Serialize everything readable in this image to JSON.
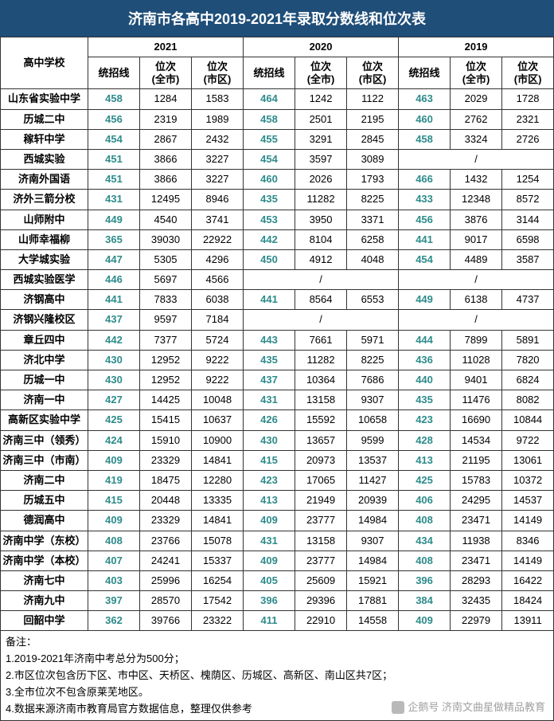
{
  "title": "济南市各高中2019-2021年录取分数线和位次表",
  "header": {
    "school": "高中学校",
    "years": [
      "2021",
      "2020",
      "2019"
    ],
    "sub": [
      "统招线",
      "位次\n(全市)",
      "位次\n(市区)"
    ]
  },
  "style": {
    "title_bg": "#1f4e79",
    "title_color": "#ffffff",
    "title_fontsize": 18,
    "border_color": "#333333",
    "score_color": "#2e8b8b",
    "cell_fontsize": 13,
    "school_col_width": 110,
    "data_col_width": 65
  },
  "rows": [
    {
      "school": "山东省实验中学",
      "d": [
        "458",
        "1284",
        "1583",
        "464",
        "1242",
        "1122",
        "463",
        "2029",
        "1728"
      ]
    },
    {
      "school": "历城二中",
      "d": [
        "456",
        "2319",
        "1989",
        "458",
        "2501",
        "2195",
        "460",
        "2762",
        "2321"
      ]
    },
    {
      "school": "稼轩中学",
      "d": [
        "454",
        "2867",
        "2432",
        "455",
        "3291",
        "2845",
        "458",
        "3324",
        "2726"
      ]
    },
    {
      "school": "西城实验",
      "d": [
        "451",
        "3866",
        "3227",
        "454",
        "3597",
        "3089",
        "/",
        "/",
        "/"
      ],
      "merge2019": true
    },
    {
      "school": "济南外国语",
      "d": [
        "451",
        "3866",
        "3227",
        "460",
        "2026",
        "1793",
        "466",
        "1432",
        "1254"
      ]
    },
    {
      "school": "济外三箭分校",
      "d": [
        "431",
        "12495",
        "8946",
        "435",
        "11282",
        "8225",
        "433",
        "12348",
        "8572"
      ]
    },
    {
      "school": "山师附中",
      "d": [
        "449",
        "4540",
        "3741",
        "453",
        "3950",
        "3371",
        "456",
        "3876",
        "3144"
      ]
    },
    {
      "school": "山师幸福柳",
      "d": [
        "365",
        "39030",
        "22922",
        "442",
        "8104",
        "6258",
        "441",
        "9017",
        "6598"
      ]
    },
    {
      "school": "大学城实验",
      "d": [
        "447",
        "5305",
        "4296",
        "450",
        "4912",
        "4048",
        "454",
        "4489",
        "3587"
      ]
    },
    {
      "school": "西城实验医学",
      "d": [
        "446",
        "5697",
        "4566",
        "/",
        "/",
        "/",
        "/",
        "/",
        "/"
      ],
      "merge2020": true,
      "merge2019": true
    },
    {
      "school": "济钢高中",
      "d": [
        "441",
        "7833",
        "6038",
        "441",
        "8564",
        "6553",
        "449",
        "6138",
        "4737"
      ]
    },
    {
      "school": "济钢兴隆校区",
      "d": [
        "437",
        "9597",
        "7184",
        "/",
        "/",
        "/",
        "/",
        "/",
        "/"
      ],
      "merge2020": true,
      "merge2019": true
    },
    {
      "school": "章丘四中",
      "d": [
        "442",
        "7377",
        "5724",
        "443",
        "7661",
        "5971",
        "444",
        "7899",
        "5891"
      ]
    },
    {
      "school": "济北中学",
      "d": [
        "430",
        "12952",
        "9222",
        "435",
        "11282",
        "8225",
        "436",
        "11028",
        "7820"
      ]
    },
    {
      "school": "历城一中",
      "d": [
        "430",
        "12952",
        "9222",
        "437",
        "10364",
        "7686",
        "440",
        "9401",
        "6824"
      ]
    },
    {
      "school": "济南一中",
      "d": [
        "427",
        "14425",
        "10048",
        "431",
        "13158",
        "9307",
        "435",
        "11476",
        "8082"
      ]
    },
    {
      "school": "高新区实验中学",
      "d": [
        "425",
        "15415",
        "10637",
        "426",
        "15592",
        "10658",
        "423",
        "16690",
        "10844"
      ]
    },
    {
      "school": "济南三中（领秀）",
      "d": [
        "424",
        "15910",
        "10900",
        "430",
        "13657",
        "9599",
        "428",
        "14534",
        "9722"
      ]
    },
    {
      "school": "济南三中（市南）",
      "d": [
        "409",
        "23329",
        "14841",
        "415",
        "20973",
        "13537",
        "413",
        "21195",
        "13061"
      ]
    },
    {
      "school": "济南二中",
      "d": [
        "419",
        "18475",
        "12280",
        "423",
        "17065",
        "11427",
        "425",
        "15783",
        "10372"
      ]
    },
    {
      "school": "历城五中",
      "d": [
        "415",
        "20448",
        "13335",
        "413",
        "21949",
        "20939",
        "406",
        "24295",
        "14537"
      ]
    },
    {
      "school": "德润高中",
      "d": [
        "409",
        "23329",
        "14841",
        "409",
        "23777",
        "14984",
        "408",
        "23471",
        "14149"
      ]
    },
    {
      "school": "济南中学（东校）",
      "d": [
        "408",
        "23766",
        "15078",
        "431",
        "13158",
        "9307",
        "434",
        "11938",
        "8346"
      ]
    },
    {
      "school": "济南中学（本校）",
      "d": [
        "407",
        "24241",
        "15337",
        "409",
        "23777",
        "14984",
        "408",
        "23471",
        "14149"
      ]
    },
    {
      "school": "济南七中",
      "d": [
        "403",
        "25996",
        "16254",
        "405",
        "25609",
        "15921",
        "396",
        "28293",
        "16422"
      ]
    },
    {
      "school": "济南九中",
      "d": [
        "397",
        "28570",
        "17542",
        "396",
        "29396",
        "17881",
        "384",
        "32435",
        "18424"
      ]
    },
    {
      "school": "回韶中学",
      "d": [
        "362",
        "39766",
        "23322",
        "411",
        "22910",
        "14558",
        "409",
        "22979",
        "13911"
      ]
    }
  ],
  "notes": {
    "heading": "备注：",
    "lines": [
      "1.2019-2021年济南中考总分为500分；",
      "2.市区位次包含历下区、市中区、天桥区、槐荫区、历城区、高新区、南山区共7区；",
      "3.全市位次不包含原莱芜地区。",
      "4.数据来源济南市教育局官方数据信息，整理仅供参考"
    ]
  },
  "watermark": "企鹅号 济南文曲星做精品教育"
}
